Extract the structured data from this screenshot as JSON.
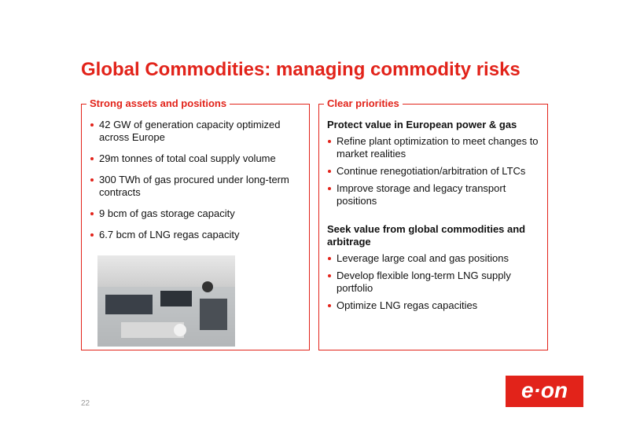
{
  "header": {
    "title": "Global Commodities: managing commodity risks"
  },
  "left_panel": {
    "heading": "Strong assets and positions",
    "bullets": [
      "42 GW of generation capacity optimized across Europe",
      "29m tonnes of total coal supply volume",
      "300 TWh of gas procured under long-term contracts",
      "9 bcm of gas storage capacity",
      "6.7 bcm of LNG regas capacity"
    ]
  },
  "right_panel": {
    "heading": "Clear priorities",
    "sections": [
      {
        "heading": "Protect value in European power & gas",
        "bullets": [
          "Refine plant optimization to meet changes to market realities",
          "Continue renegotiation/arbitration of LTCs",
          "Improve storage and legacy transport positions"
        ]
      },
      {
        "heading": "Seek value from global commodities and arbitrage",
        "bullets": [
          "Leverage large coal and gas positions",
          "Develop flexible long-term LNG supply portfolio",
          "Optimize LNG regas capacities"
        ]
      }
    ]
  },
  "footer": {
    "page_number": "22",
    "logo": "e·on"
  }
}
